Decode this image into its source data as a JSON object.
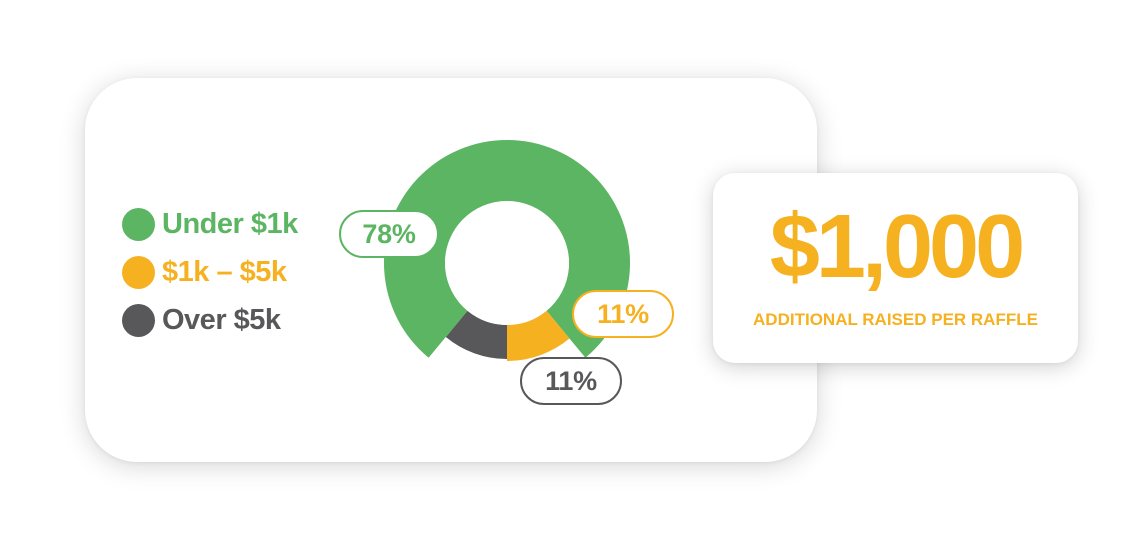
{
  "colors": {
    "green": "#5bb562",
    "orange": "#f5b120",
    "gray": "#58585a"
  },
  "chart_data": {
    "type": "pie",
    "variant": "donut",
    "categories": [
      "Under $1k",
      "$1k – $5k",
      "Over $5k"
    ],
    "values": [
      78,
      11,
      11
    ],
    "data_labels": [
      "78%",
      "11%",
      "11%"
    ],
    "colors": [
      "#5bb562",
      "#f5b120",
      "#58585a"
    ],
    "legend_position": "left"
  },
  "stat": {
    "value": "$1,000",
    "caption": "ADDITIONAL RAISED PER RAFFLE"
  }
}
